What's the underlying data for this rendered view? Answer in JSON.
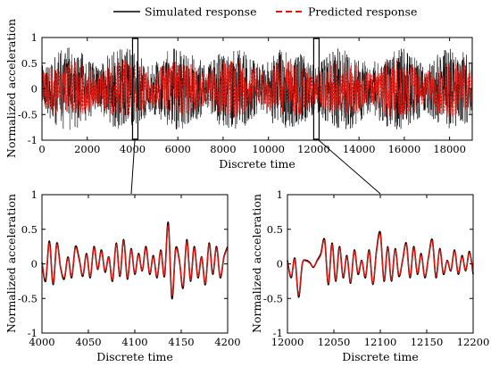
{
  "legend": {
    "simulated": "Simulated response",
    "predicted": "Predicted response"
  },
  "colors": {
    "simulated": "#000000",
    "predicted": "#e8140c"
  },
  "chart_data": [
    {
      "id": "overview",
      "type": "line",
      "xlabel": "Discrete time",
      "ylabel": "Normalized acceleration",
      "xlim": [
        0,
        19000
      ],
      "ylim": [
        -1,
        1
      ],
      "xticks": [
        0,
        2000,
        4000,
        6000,
        8000,
        10000,
        12000,
        14000,
        16000,
        18000
      ],
      "yticks": [
        -1,
        -0.5,
        0,
        0.5,
        1
      ],
      "xtick_labels": [
        "0",
        "2000",
        "4000",
        "6000",
        "8000",
        "10000",
        "12000",
        "14000",
        "16000",
        "18000"
      ],
      "ytick_labels": [
        "-1",
        "-0.5",
        "0",
        "0.5",
        "1"
      ],
      "highlight_boxes": [
        {
          "x": [
            4000,
            4200
          ],
          "y": [
            -0.98,
            0.98
          ]
        },
        {
          "x": [
            12000,
            12200
          ],
          "y": [
            -0.98,
            0.98
          ]
        }
      ],
      "series": [
        {
          "name": "Simulated response",
          "style": "solid",
          "amplitude_range": [
            -0.85,
            0.85
          ]
        },
        {
          "name": "Predicted response",
          "style": "dashed",
          "amplitude_range": [
            -0.6,
            0.6
          ]
        }
      ]
    },
    {
      "id": "zoom-4000",
      "type": "line",
      "xlabel": "Discrete time",
      "ylabel": "Normalized acceleration",
      "xlim": [
        4000,
        4200
      ],
      "ylim": [
        -1,
        1
      ],
      "xticks": [
        4000,
        4050,
        4100,
        4150,
        4200
      ],
      "yticks": [
        -1,
        -0.5,
        0,
        0.5,
        1
      ],
      "xtick_labels": [
        "4000",
        "4050",
        "4100",
        "4150",
        "4200"
      ],
      "ytick_labels": [
        "-1",
        "-0.5",
        "0",
        "0.5",
        "1"
      ],
      "x": [
        4000,
        4004,
        4008,
        4012,
        4016,
        4020,
        4024,
        4028,
        4032,
        4036,
        4040,
        4044,
        4048,
        4052,
        4056,
        4060,
        4064,
        4068,
        4072,
        4076,
        4080,
        4084,
        4088,
        4092,
        4096,
        4100,
        4104,
        4108,
        4112,
        4116,
        4120,
        4124,
        4128,
        4132,
        4136,
        4140,
        4144,
        4148,
        4152,
        4156,
        4160,
        4164,
        4168,
        4172,
        4176,
        4180,
        4184,
        4188,
        4192,
        4196,
        4200
      ],
      "series": [
        {
          "name": "Simulated response",
          "values": [
            0.02,
            -0.25,
            0.33,
            -0.3,
            0.3,
            -0.05,
            -0.22,
            0.1,
            -0.2,
            0.25,
            0.08,
            -0.18,
            0.15,
            -0.2,
            0.25,
            -0.08,
            0.2,
            -0.12,
            0.1,
            -0.25,
            0.3,
            -0.18,
            0.35,
            -0.22,
            0.22,
            -0.15,
            0.15,
            -0.1,
            0.25,
            -0.15,
            0.12,
            -0.2,
            0.2,
            -0.18,
            0.6,
            -0.5,
            0.22,
            0.05,
            -0.35,
            0.35,
            -0.25,
            0.25,
            -0.2,
            0.1,
            -0.3,
            0.3,
            -0.15,
            0.25,
            -0.2,
            0.1,
            0.25
          ]
        },
        {
          "name": "Predicted response",
          "values": [
            0.0,
            -0.22,
            0.3,
            -0.28,
            0.28,
            -0.04,
            -0.2,
            0.08,
            -0.18,
            0.23,
            0.06,
            -0.16,
            0.13,
            -0.18,
            0.23,
            -0.07,
            0.18,
            -0.1,
            0.09,
            -0.23,
            0.28,
            -0.16,
            0.33,
            -0.2,
            0.2,
            -0.13,
            0.13,
            -0.09,
            0.23,
            -0.13,
            0.1,
            -0.18,
            0.18,
            -0.16,
            0.55,
            -0.45,
            0.2,
            0.04,
            -0.32,
            0.32,
            -0.23,
            0.23,
            -0.18,
            0.09,
            -0.28,
            0.28,
            -0.13,
            0.23,
            -0.18,
            0.09,
            0.23
          ]
        }
      ]
    },
    {
      "id": "zoom-12000",
      "type": "line",
      "xlabel": "Discrete time",
      "ylabel": "Normalized acceleration",
      "xlim": [
        12000,
        12200
      ],
      "ylim": [
        -1,
        1
      ],
      "xticks": [
        12000,
        12050,
        12100,
        12150,
        12200
      ],
      "yticks": [
        -1,
        -0.5,
        0,
        0.5,
        1
      ],
      "xtick_labels": [
        "12000",
        "12050",
        "12100",
        "12150",
        "12200"
      ],
      "ytick_labels": [
        "-1",
        "-0.5",
        "0",
        "0.5",
        "1"
      ],
      "x": [
        12000,
        12004,
        12008,
        12012,
        12016,
        12020,
        12024,
        12028,
        12032,
        12036,
        12040,
        12044,
        12048,
        12052,
        12056,
        12060,
        12064,
        12068,
        12072,
        12076,
        12080,
        12084,
        12088,
        12092,
        12096,
        12100,
        12104,
        12108,
        12112,
        12116,
        12120,
        12124,
        12128,
        12132,
        12136,
        12140,
        12144,
        12148,
        12152,
        12156,
        12160,
        12164,
        12168,
        12172,
        12176,
        12180,
        12184,
        12188,
        12192,
        12196,
        12200
      ],
      "series": [
        {
          "name": "Simulated response",
          "values": [
            0.05,
            -0.2,
            0.08,
            -0.48,
            0.0,
            0.05,
            0.02,
            -0.05,
            0.05,
            0.15,
            0.35,
            -0.3,
            0.3,
            -0.25,
            0.25,
            -0.2,
            0.12,
            -0.28,
            0.2,
            -0.15,
            0.05,
            -0.2,
            0.2,
            -0.3,
            0.2,
            0.45,
            -0.25,
            0.25,
            -0.25,
            0.22,
            -0.18,
            0.05,
            0.3,
            -0.2,
            0.25,
            -0.15,
            0.15,
            -0.2,
            0.1,
            0.35,
            -0.2,
            0.22,
            -0.15,
            0.05,
            -0.1,
            0.2,
            -0.15,
            0.12,
            -0.1,
            0.18,
            -0.15
          ]
        },
        {
          "name": "Predicted response",
          "values": [
            0.03,
            -0.18,
            0.06,
            -0.45,
            0.0,
            0.04,
            0.01,
            -0.04,
            0.04,
            0.13,
            0.33,
            -0.28,
            0.28,
            -0.23,
            0.23,
            -0.18,
            0.1,
            -0.26,
            0.18,
            -0.13,
            0.04,
            -0.18,
            0.18,
            -0.28,
            0.18,
            0.42,
            -0.23,
            0.23,
            -0.23,
            0.2,
            -0.16,
            0.04,
            0.28,
            -0.18,
            0.23,
            -0.13,
            0.13,
            -0.18,
            0.09,
            0.33,
            -0.18,
            0.2,
            -0.13,
            0.04,
            -0.09,
            0.18,
            -0.13,
            0.1,
            -0.09,
            0.16,
            -0.13
          ]
        }
      ]
    }
  ]
}
